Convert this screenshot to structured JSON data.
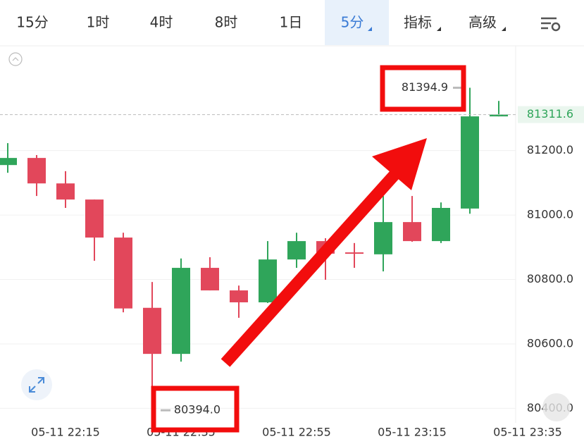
{
  "tabs": [
    "15分",
    "1时",
    "4时",
    "8时",
    "1日",
    "5分",
    "指标",
    "高级"
  ],
  "chart_data": {
    "type": "candlestick",
    "categories": [
      null,
      null,
      "05-11 22:15",
      null,
      null,
      null,
      "05-11 22:35",
      null,
      null,
      null,
      "05-11 22:55",
      null,
      null,
      null,
      "05-11 23:15",
      null,
      null,
      null,
      "05-11 23:35"
    ],
    "open": [
      81155,
      81177,
      81098,
      81048,
      80930,
      80712,
      80569,
      80836,
      80766,
      80729,
      80862,
      80919,
      80884,
      80878,
      80978,
      80919,
      81020,
      81306,
      null
    ],
    "high": [
      81223,
      81186,
      81136,
      81048,
      80945,
      80792,
      80865,
      80869,
      80781,
      80919,
      80945,
      80928,
      80913,
      81059,
      81059,
      81039,
      81394.9,
      81354,
      null
    ],
    "low": [
      81131,
      81059,
      81022,
      80858,
      80698,
      80394,
      80545,
      80766,
      80681,
      80727,
      80836,
      80799,
      80836,
      80825,
      80917,
      80913,
      81004,
      81306,
      null
    ],
    "close": [
      81177,
      81098,
      81048,
      80930,
      80710,
      80569,
      80836,
      80766,
      80729,
      80862,
      80919,
      80880,
      80882,
      80978,
      80919,
      81022,
      81306,
      81311.6,
      null
    ],
    "up_color": "#2fa55a",
    "down_color": "#e2475b",
    "ylim": [
      80355,
      81525
    ],
    "yticks": [
      {
        "value": 81200,
        "label": "81200.0"
      },
      {
        "value": 81000,
        "label": "81000.0"
      },
      {
        "value": 80800,
        "label": "80800.0"
      },
      {
        "value": 80600,
        "label": "80600.0"
      },
      {
        "value": 80400,
        "label": "80400.0"
      }
    ],
    "grid": true,
    "annotations": [
      {
        "value": 81394.9,
        "label": "81394.9"
      },
      {
        "value": 80394,
        "label": "80394.0"
      }
    ],
    "last_price": {
      "value": 81311.6,
      "label": "81311.6"
    }
  }
}
